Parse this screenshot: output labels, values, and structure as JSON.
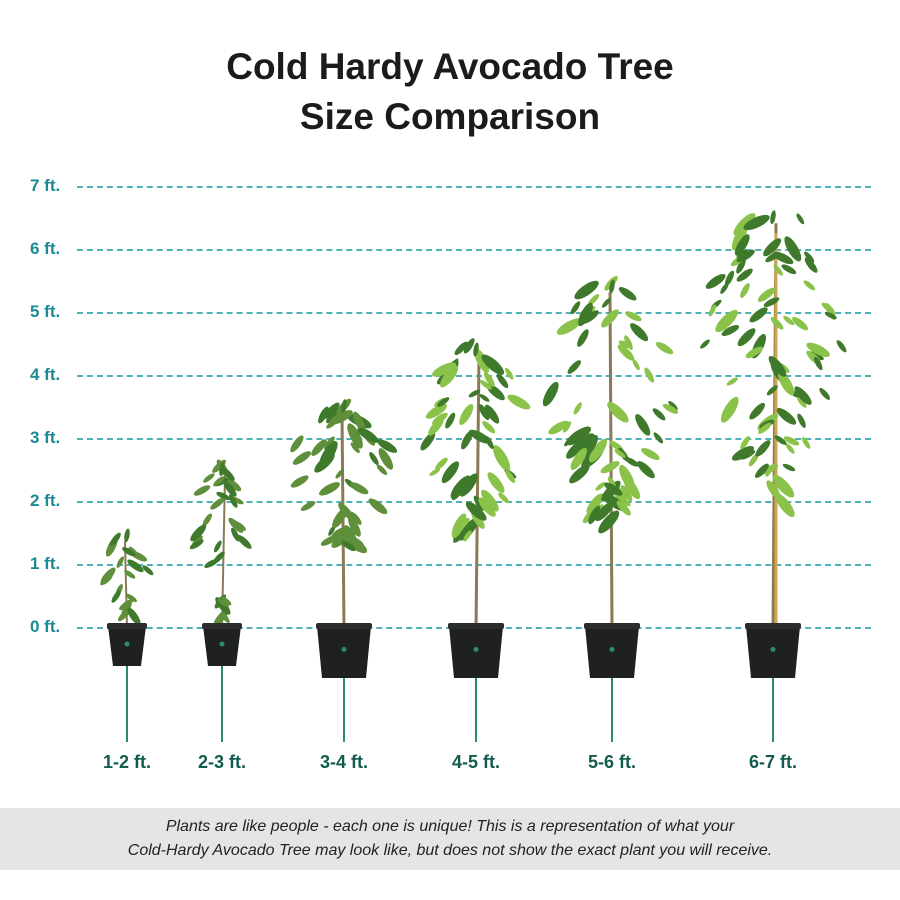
{
  "title": {
    "line1": "Cold Hardy Avocado Tree",
    "line2": "Size Comparison"
  },
  "y_axis": {
    "ticks": [
      "7 ft.",
      "6 ft.",
      "5 ft.",
      "4 ft.",
      "3 ft.",
      "2 ft.",
      "1 ft.",
      "0 ft."
    ]
  },
  "colors": {
    "accent": "#1a8a93",
    "gridline": "#4db1b6",
    "label": "#125b4e",
    "pot": "#1f2020",
    "leaf_dark": "#3f7a2c",
    "leaf_light": "#8bc34a",
    "trunk": "#8a7a55"
  },
  "plants": [
    {
      "label": "1-2 ft.",
      "height_ft": 1.55,
      "icon": "young-avocado-tree-icon"
    },
    {
      "label": "2-3 ft.",
      "height_ft": 2.6,
      "icon": "young-avocado-tree-icon"
    },
    {
      "label": "3-4 ft.",
      "height_ft": 3.6,
      "icon": "avocado-tree-icon"
    },
    {
      "label": "4-5 ft.",
      "height_ft": 4.5,
      "icon": "avocado-tree-icon"
    },
    {
      "label": "5-6 ft.",
      "height_ft": 5.5,
      "icon": "avocado-tree-icon"
    },
    {
      "label": "6-7 ft.",
      "height_ft": 6.6,
      "icon": "staked-avocado-tree-icon"
    }
  ],
  "footer": {
    "line1": "Plants are like people - each one is unique! This is a representation of what your",
    "line2": "Cold-Hardy Avocado Tree may look like, but does not show the exact plant you will receive."
  }
}
